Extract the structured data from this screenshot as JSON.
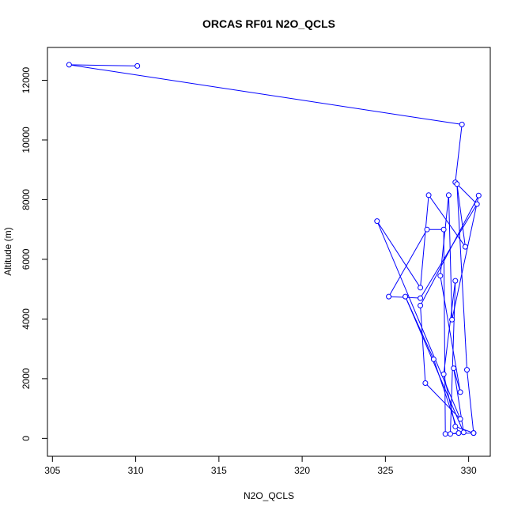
{
  "chart_data": {
    "type": "line",
    "title": "ORCAS RF01 N2O_QCLS",
    "xlabel": "N2O_QCLS",
    "ylabel": "Altitude (m)",
    "xlim": [
      304.7,
      331.3
    ],
    "ylim": [
      -600,
      13100
    ],
    "xticks": [
      305,
      310,
      315,
      320,
      325,
      330
    ],
    "yticks": [
      0,
      2000,
      4000,
      6000,
      8000,
      10000,
      12000
    ],
    "grid": false,
    "legend": "none",
    "series": [
      {
        "color": "#0000ff",
        "marker": "open-circle",
        "points": [
          [
            310.1,
            12480
          ],
          [
            306.0,
            12520
          ],
          [
            329.6,
            10520
          ],
          [
            329.2,
            8580
          ],
          [
            330.5,
            7850
          ],
          [
            327.1,
            4700
          ],
          [
            325.2,
            4750
          ],
          [
            327.5,
            7000
          ],
          [
            328.5,
            7000
          ],
          [
            328.6,
            150
          ],
          [
            330.3,
            180
          ],
          [
            329.9,
            2300
          ],
          [
            329.3,
            8520
          ],
          [
            329.8,
            6420
          ],
          [
            327.6,
            8150
          ],
          [
            327.1,
            5050
          ],
          [
            324.5,
            7280
          ],
          [
            329.5,
            650
          ],
          [
            327.4,
            1850
          ],
          [
            327.1,
            4450
          ],
          [
            330.6,
            8140
          ],
          [
            329.0,
            3980
          ],
          [
            328.8,
            8150
          ],
          [
            328.3,
            5450
          ],
          [
            329.5,
            1550
          ],
          [
            329.1,
            2350
          ],
          [
            329.7,
            200
          ],
          [
            326.2,
            4750
          ],
          [
            327.9,
            2650
          ],
          [
            329.4,
            180
          ],
          [
            328.9,
            150
          ],
          [
            329.2,
            5280
          ],
          [
            328.5,
            2150
          ],
          [
            329.2,
            400
          ],
          [
            330.3,
            180
          ]
        ]
      }
    ]
  }
}
